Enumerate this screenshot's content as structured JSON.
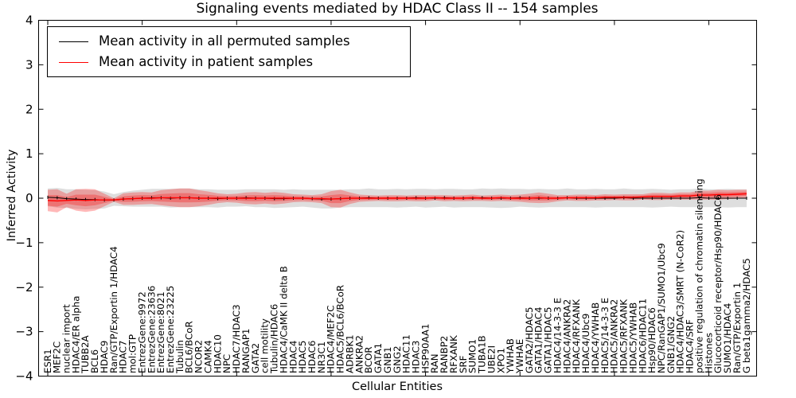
{
  "title": "Signaling events mediated by HDAC Class II -- 154 samples",
  "legend": {
    "items": [
      {
        "label": "Mean activity in all permuted samples",
        "color": "#000000"
      },
      {
        "label": "Mean activity in patient samples",
        "color": "#ff0000"
      }
    ]
  },
  "axes": {
    "xlabel": "Cellular Entities",
    "ylabel": "Inferred Activity",
    "yticks": [
      4,
      3,
      2,
      1,
      0,
      -1,
      -2,
      -3,
      -4
    ],
    "ylim": [
      -4,
      4
    ],
    "xtick_every": 10,
    "tick_direction": "in",
    "grid": false
  },
  "chart_data": {
    "type": "line",
    "title": "Signaling events mediated by HDAC Class II -- 154 samples",
    "xlabel": "Cellular Entities",
    "ylabel": "Inferred Activity",
    "ylim": [
      -4,
      4
    ],
    "legend_position": "upper left",
    "categories": [
      "ESR1",
      "MEF2C",
      "nuclear import",
      "HDAC4/ER alpha",
      "TUBB2A",
      "BCL6",
      "HDAC9",
      "Ran/GTP/Exportin 1/HDAC4",
      "HDAC7",
      "mol:GTP",
      "EntrezGene:9972",
      "EntrezGene:23636",
      "EntrezGene:8021",
      "EntrezGene:23225",
      "Tubulin",
      "BCL6/BCoR",
      "NCOR2",
      "CAMK4",
      "HDAC10",
      "NPC",
      "HDAC7/HDAC3",
      "RANGAP1",
      "GATA2",
      "cell motility",
      "Tubulin/HDAC6",
      "HDAC4/CaMK II delta B",
      "HDAC4",
      "HDAC5",
      "HDAC6",
      "NR3C1",
      "HDAC4/MEF2C",
      "HDAC5/BCL6/BCoR",
      "ADRBK1",
      "ANKRA2",
      "BCOR",
      "GATA1",
      "GNB1",
      "GNG2",
      "HDAC11",
      "HDAC3",
      "HSP90AA1",
      "RAN",
      "RANBP2",
      "RFXANK",
      "SRF",
      "SUMO1",
      "TUBA1B",
      "UBE2I",
      "XPO1",
      "YWHAB",
      "YWHAE",
      "GATA2/HDAC5",
      "GATA1/HDAC4",
      "GATA1/HDAC5",
      "HDAC4/14-3-3 E",
      "HDAC4/ANKRA2",
      "HDAC4/RFXANK",
      "HDAC4/Ubc9",
      "HDAC4/YWHAB",
      "HDAC5/14-3-3 E",
      "HDAC5/ANKRA2",
      "HDAC5/RFXANK",
      "HDAC5/YWHAB",
      "HDAC6/HDAC11",
      "Hsp90/HDAC6",
      "NPC/RanGAP1/SUMO1/Ubc9",
      "GNB1/GNG2",
      "HDAC4/HDAC3/SMRT (N-CoR2)",
      "HDAC4/SRF",
      "positive regulation of chromatin silencing",
      "Histones",
      "Glucocorticoid receptor/Hsp90/HDAC6",
      "SUMO1/HDAC4",
      "Ran/GTP/Exportin 1",
      "G beta1gamma2/HDAC5"
    ],
    "series": [
      {
        "name": "Mean activity in all permuted samples",
        "color": "#000000",
        "band_color": "#000000",
        "band_opacity": 0.13,
        "values": [
          0.02,
          0.01,
          -0.01,
          -0.02,
          -0.03,
          -0.03,
          -0.04,
          -0.04,
          -0.02,
          -0.01,
          0,
          0.01,
          0.01,
          0,
          0.01,
          0.01,
          0,
          0,
          -0.01,
          0,
          0,
          0.01,
          0,
          0,
          -0.01,
          -0.01,
          0,
          0,
          -0.01,
          -0.02,
          -0.02,
          -0.01,
          0,
          0,
          0.01,
          0,
          0,
          0,
          0,
          0.01,
          0,
          0,
          0.01,
          0,
          0,
          0,
          0.01,
          0,
          0,
          0,
          0.01,
          0,
          0,
          0,
          0,
          0.01,
          0,
          0,
          0,
          0,
          0,
          0.01,
          0,
          0,
          0,
          0,
          0,
          0,
          0,
          0.01,
          0,
          0,
          0,
          0,
          0
        ],
        "band_std": [
          0.2,
          0.22,
          0.21,
          0.22,
          0.22,
          0.21,
          0.19,
          0.13,
          0.16,
          0.18,
          0.19,
          0.2,
          0.2,
          0.21,
          0.21,
          0.21,
          0.2,
          0.2,
          0.2,
          0.19,
          0.19,
          0.19,
          0.2,
          0.2,
          0.21,
          0.2,
          0.2,
          0.19,
          0.2,
          0.21,
          0.21,
          0.2,
          0.2,
          0.2,
          0.21,
          0.2,
          0.2,
          0.21,
          0.2,
          0.2,
          0.21,
          0.2,
          0.2,
          0.21,
          0.2,
          0.2,
          0.21,
          0.21,
          0.22,
          0.21,
          0.2,
          0.2,
          0.21,
          0.2,
          0.2,
          0.21,
          0.2,
          0.2,
          0.21,
          0.2,
          0.2,
          0.21,
          0.2,
          0.2,
          0.21,
          0.2,
          0.19,
          0.2,
          0.2,
          0.21,
          0.2,
          0.2,
          0.21,
          0.2,
          0.2
        ]
      },
      {
        "name": "Mean activity in patient samples",
        "color": "#ff0000",
        "band_color": "#ff0000",
        "band_opacity": 0.28,
        "values": [
          -0.05,
          -0.06,
          -0.05,
          -0.04,
          -0.05,
          -0.04,
          -0.04,
          -0.04,
          -0.02,
          -0.01,
          0,
          0,
          0.01,
          0.01,
          0.01,
          0.01,
          0,
          0,
          0,
          0,
          0,
          0,
          0,
          0,
          0,
          0,
          0,
          0,
          -0.01,
          -0.01,
          -0.02,
          -0.01,
          0,
          0,
          0,
          0,
          0,
          0,
          0,
          0,
          0,
          0.01,
          0,
          0,
          0,
          0.01,
          0,
          0,
          0.01,
          0,
          0,
          0,
          0.01,
          0,
          0,
          0.01,
          0.01,
          0.01,
          0.01,
          0.02,
          0.02,
          0.02,
          0.02,
          0.03,
          0.04,
          0.04,
          0.04,
          0.05,
          0.05,
          0.07,
          0.07,
          0.08,
          0.08,
          0.09,
          0.1
        ],
        "band_std": [
          0.24,
          0.26,
          0.15,
          0.24,
          0.26,
          0.24,
          0.14,
          0.04,
          0.13,
          0.14,
          0.14,
          0.13,
          0.17,
          0.19,
          0.21,
          0.21,
          0.18,
          0.15,
          0.11,
          0.09,
          0.1,
          0.13,
          0.14,
          0.12,
          0.14,
          0.12,
          0.09,
          0.08,
          0.08,
          0.1,
          0.18,
          0.2,
          0.13,
          0.08,
          0.07,
          0.06,
          0.07,
          0.07,
          0.06,
          0.07,
          0.07,
          0.06,
          0.07,
          0.06,
          0.07,
          0.07,
          0.06,
          0.07,
          0.07,
          0.07,
          0.08,
          0.1,
          0.12,
          0.1,
          0.07,
          0.06,
          0.07,
          0.07,
          0.06,
          0.07,
          0.06,
          0.07,
          0.07,
          0.06,
          0.08,
          0.08,
          0.07,
          0.08,
          0.08,
          0.1,
          0.1,
          0.11,
          0.1,
          0.1,
          0.09
        ]
      }
    ]
  }
}
